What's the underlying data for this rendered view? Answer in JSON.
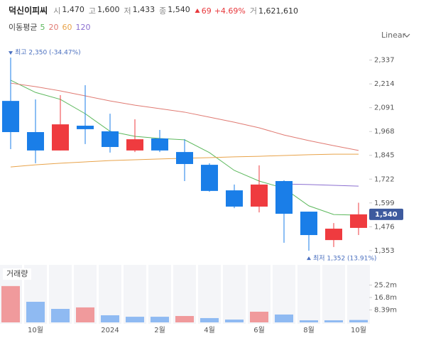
{
  "header": {
    "name": "덕신이피씨",
    "quotes": [
      {
        "label": "시",
        "value": "1,470"
      },
      {
        "label": "고",
        "value": "1,600"
      },
      {
        "label": "저",
        "value": "1,433"
      },
      {
        "label": "종",
        "value": "1,540"
      }
    ],
    "change": "69",
    "change_pct": "+4.69%",
    "volume_label": "거",
    "volume": "1,621,610"
  },
  "chart_data": {
    "type": "candlestick",
    "scale_label": "Linear",
    "ma_label": "이동평균",
    "categories": [
      null,
      "10월",
      null,
      null,
      "2024",
      null,
      "2월",
      null,
      "4월",
      null,
      "6월",
      null,
      "8월",
      null,
      "10월"
    ],
    "open": [
      2126,
      1965,
      1870,
      1998,
      1969,
      1870,
      1932,
      1862,
      1796,
      1664,
      1580,
      1712,
      1554,
      1407,
      1470
    ],
    "high": [
      2350,
      2134,
      2156,
      2207,
      2060,
      2031,
      1976,
      1928,
      1804,
      1694,
      1793,
      1716,
      1554,
      1495,
      1600
    ],
    "low": [
      1877,
      1804,
      1870,
      1903,
      1859,
      1862,
      1862,
      1712,
      1657,
      1572,
      1550,
      1393,
      1352,
      1371,
      1433
    ],
    "close": [
      1965,
      1870,
      2005,
      1980,
      1888,
      1928,
      1870,
      1800,
      1661,
      1580,
      1694,
      1543,
      1433,
      1466,
      1540
    ],
    "up_color": "#ef3b3f",
    "down_color": "#1a7ee8",
    "ylim": [
      1290,
      2420
    ],
    "yticks": [
      {
        "value": 1353,
        "label": "1,353"
      },
      {
        "value": 1476,
        "label": "1,476"
      },
      {
        "value": 1599,
        "label": "1,599"
      },
      {
        "value": 1722,
        "label": "1,722"
      },
      {
        "value": 1845,
        "label": "1,845"
      },
      {
        "value": 1968,
        "label": "1,968"
      },
      {
        "value": 2091,
        "label": "2,091"
      },
      {
        "value": 2214,
        "label": "2,214"
      },
      {
        "value": 2337,
        "label": "2,337"
      }
    ],
    "grid": false,
    "series": [
      {
        "name": "5",
        "color": "#5cb85c",
        "values": [
          2233,
          2170,
          2134,
          2060,
          1969,
          1943,
          1932,
          1925,
          1859,
          1767,
          1712,
          1675,
          1584,
          1539,
          1536
        ]
      },
      {
        "name": "20",
        "color": "#e07a72",
        "values": [
          2218,
          2200,
          2178,
          2152,
          2126,
          2104,
          2086,
          2068,
          2042,
          2016,
          1987,
          1950,
          1921,
          1895,
          1870
        ]
      },
      {
        "name": "60",
        "color": "#e8a34a",
        "values": [
          1785,
          1796,
          1804,
          1811,
          1818,
          1822,
          1826,
          1830,
          1833,
          1837,
          1840,
          1844,
          1848,
          1851,
          1851
        ]
      },
      {
        "name": "120",
        "color": "#8b6fd0",
        "values": [
          null,
          null,
          null,
          null,
          null,
          null,
          null,
          null,
          null,
          null,
          null,
          1697,
          1694,
          1690,
          1686
        ]
      }
    ],
    "annotations": {
      "high": "최고 2,350 (-34.47%)",
      "low": "최저 1,352 (13.91%)"
    },
    "last_label": "1,540",
    "volume": {
      "name": "거래량",
      "values": [
        24.5,
        13.9,
        9.1,
        10.1,
        4.8,
        3.8,
        3.8,
        4.3,
        2.9,
        1.9,
        7.2,
        5.3,
        1.4,
        1.4,
        1.62
      ],
      "colors": [
        "#f09a9c",
        "#8fbaf2",
        "#8fbaf2",
        "#f09a9c",
        "#8fbaf2",
        "#8fbaf2",
        "#8fbaf2",
        "#f09a9c",
        "#8fbaf2",
        "#8fbaf2",
        "#f09a9c",
        "#8fbaf2",
        "#8fbaf2",
        "#8fbaf2",
        "#8fbaf2"
      ],
      "ylim": [
        0,
        38.8
      ],
      "yticks": [
        {
          "value": 8.39,
          "label": "8.39m"
        },
        {
          "value": 16.8,
          "label": "16.8m"
        },
        {
          "value": 25.2,
          "label": "25.2m"
        }
      ]
    }
  }
}
